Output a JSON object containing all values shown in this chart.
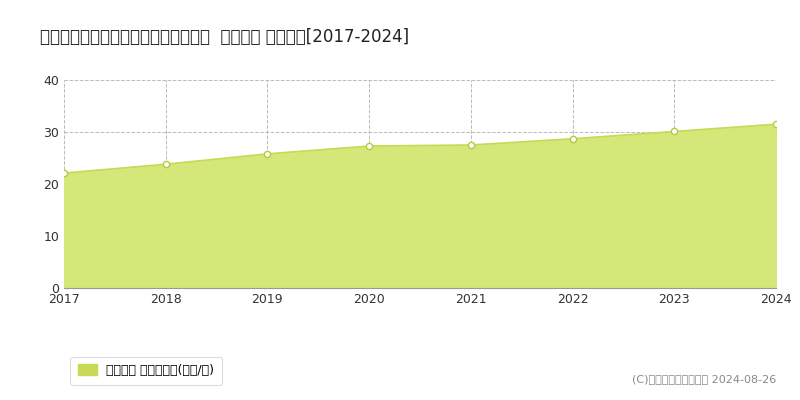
{
  "title": "佐賀県佐賀市兵庫北４丁目１８５番外  地価公示 地価推移[2017-2024]",
  "years": [
    2017,
    2018,
    2019,
    2020,
    2021,
    2022,
    2023,
    2024
  ],
  "values": [
    22.1,
    23.8,
    25.8,
    27.3,
    27.5,
    28.7,
    30.1,
    31.5
  ],
  "ylim": [
    0,
    40
  ],
  "yticks": [
    0,
    10,
    20,
    30,
    40
  ],
  "line_color": "#c8d955",
  "fill_color": "#d4e87a",
  "marker_color": "#ffffff",
  "marker_edge_color": "#b8c840",
  "grid_color": "#bbbbbb",
  "bg_color": "#ffffff",
  "legend_label": "地価公示 平均坪単価(万円/坪)",
  "legend_square_color": "#c8d955",
  "copyright_text": "(C)土地価格ドットコム 2024-08-26",
  "title_fontsize": 12,
  "axis_fontsize": 9,
  "legend_fontsize": 9,
  "copyright_fontsize": 8
}
